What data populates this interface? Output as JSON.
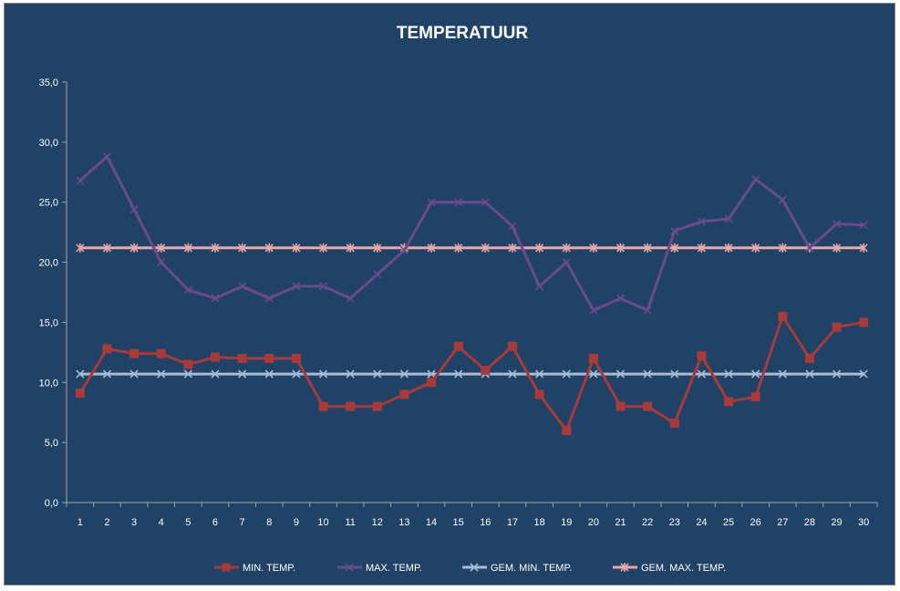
{
  "chart_data": {
    "type": "line",
    "title": "TEMPERATUUR",
    "xlabel": "",
    "ylabel": "",
    "ylim": [
      0,
      35
    ],
    "y_ticks": [
      "0,0",
      "5,0",
      "10,0",
      "15,0",
      "20,0",
      "25,0",
      "30,0",
      "35,0"
    ],
    "categories": [
      "1",
      "2",
      "3",
      "4",
      "5",
      "6",
      "7",
      "8",
      "9",
      "10",
      "11",
      "12",
      "13",
      "14",
      "15",
      "16",
      "17",
      "18",
      "19",
      "20",
      "21",
      "22",
      "23",
      "24",
      "25",
      "26",
      "27",
      "28",
      "29",
      "30"
    ],
    "grid": false,
    "legend_position": "bottom",
    "series": [
      {
        "name": "MIN. TEMP.",
        "color": "#a83a3a",
        "marker": "square",
        "values": [
          9.1,
          12.8,
          12.4,
          12.4,
          11.5,
          12.1,
          12.0,
          12.0,
          12.0,
          8.0,
          8.0,
          8.0,
          9.0,
          10.0,
          13.0,
          11.0,
          13.0,
          9.0,
          6.0,
          12.0,
          8.0,
          8.0,
          6.6,
          12.2,
          8.4,
          8.8,
          15.5,
          12.0,
          14.6,
          15.0
        ]
      },
      {
        "name": "MAX. TEMP.",
        "color": "#6a4a8c",
        "marker": "x",
        "values": [
          26.8,
          28.8,
          24.4,
          20.0,
          17.7,
          17.0,
          18.0,
          17.0,
          18.0,
          18.0,
          17.0,
          19.0,
          21.0,
          25.0,
          25.0,
          25.0,
          23.0,
          18.0,
          20.0,
          16.0,
          17.0,
          16.0,
          22.6,
          23.4,
          23.6,
          26.9,
          25.2,
          21.2,
          23.2,
          23.1
        ]
      },
      {
        "name": "GEM. MIN. TEMP.",
        "color": "#a8bcd8",
        "marker": "x",
        "values": [
          10.7,
          10.7,
          10.7,
          10.7,
          10.7,
          10.7,
          10.7,
          10.7,
          10.7,
          10.7,
          10.7,
          10.7,
          10.7,
          10.7,
          10.7,
          10.7,
          10.7,
          10.7,
          10.7,
          10.7,
          10.7,
          10.7,
          10.7,
          10.7,
          10.7,
          10.7,
          10.7,
          10.7,
          10.7,
          10.7
        ]
      },
      {
        "name": "GEM. MAX. TEMP.",
        "color": "#e8a8a8",
        "marker": "star",
        "values": [
          21.2,
          21.2,
          21.2,
          21.2,
          21.2,
          21.2,
          21.2,
          21.2,
          21.2,
          21.2,
          21.2,
          21.2,
          21.2,
          21.2,
          21.2,
          21.2,
          21.2,
          21.2,
          21.2,
          21.2,
          21.2,
          21.2,
          21.2,
          21.2,
          21.2,
          21.2,
          21.2,
          21.2,
          21.2,
          21.2
        ]
      }
    ]
  }
}
